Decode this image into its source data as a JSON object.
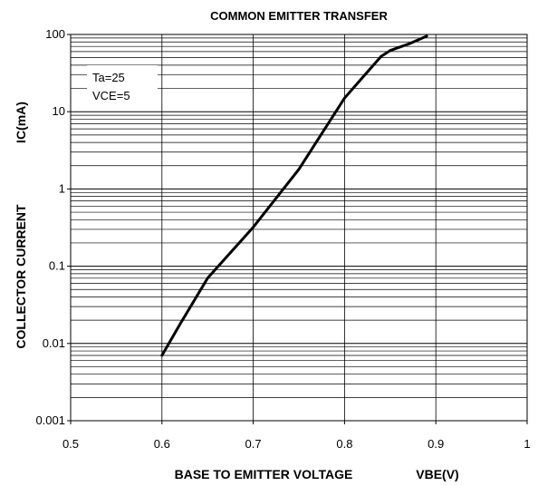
{
  "chart_data": {
    "type": "line",
    "title": "COMMON EMITTER TRANSFER",
    "xlabel": "BASE TO EMITTER VOLTAGE",
    "xlabel_unit": "VBE(V)",
    "ylabel": "COLLECTOR CURRENT",
    "ylabel_unit": "IC(mA)",
    "y_scale": "log",
    "grid": true,
    "xlim": [
      0.5,
      1
    ],
    "ylim": [
      0.001,
      100
    ],
    "x_ticks": [
      "0.5",
      "0.6",
      "0.7",
      "0.8",
      "0.9",
      "1"
    ],
    "y_ticks": [
      "0.001",
      "0.01",
      "0.1",
      "1",
      "10",
      "100"
    ],
    "annotations": [
      "Ta=25",
      "VCE=5"
    ],
    "series": [
      {
        "x": [
          0.6,
          0.62,
          0.65,
          0.7,
          0.75,
          0.8,
          0.82,
          0.84,
          0.85,
          0.87,
          0.89
        ],
        "y": [
          0.007,
          0.018,
          0.07,
          0.32,
          1.8,
          15,
          28,
          52,
          62,
          75,
          95
        ],
        "color": "#000000"
      }
    ]
  }
}
